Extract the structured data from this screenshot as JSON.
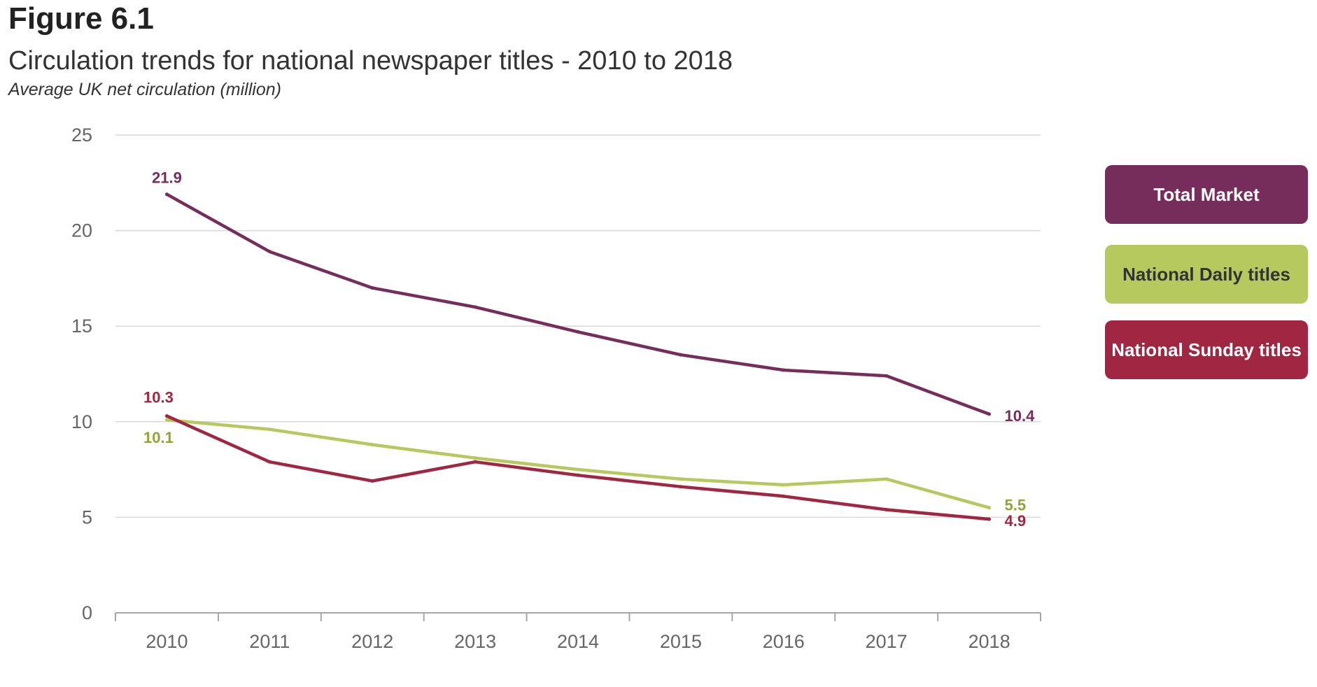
{
  "header": {
    "figure_label": "Figure 6.1",
    "title": "Circulation trends for national newspaper titles - 2010 to 2018",
    "subtitle": "Average UK net circulation (million)"
  },
  "chart_data": {
    "type": "line",
    "title": "Circulation trends for national newspaper titles - 2010 to 2018",
    "subtitle": "Average UK net circulation (million)",
    "xlabel": "",
    "ylabel": "",
    "x": [
      "2010",
      "2011",
      "2012",
      "2013",
      "2014",
      "2015",
      "2016",
      "2017",
      "2018"
    ],
    "ylim": [
      0,
      25
    ],
    "yticks": [
      0,
      5,
      10,
      15,
      20,
      25
    ],
    "grid": "horizontal",
    "legend_position": "right",
    "series": [
      {
        "name": "Total Market",
        "color": "#772d5c",
        "values": [
          21.9,
          18.9,
          17.0,
          16.0,
          14.7,
          13.5,
          12.7,
          12.4,
          10.4
        ],
        "labels": {
          "0": "21.9",
          "8": "10.4"
        }
      },
      {
        "name": "National Daily titles",
        "color": "#b5c95e",
        "label_color": "#8fa632",
        "text_color": "#333333",
        "values": [
          10.1,
          9.6,
          8.8,
          8.1,
          7.5,
          7.0,
          6.7,
          7.0,
          5.5
        ],
        "labels": {
          "0": "10.1",
          "8": "5.5"
        }
      },
      {
        "name": "National Sunday titles",
        "color": "#a12641",
        "values": [
          10.3,
          7.9,
          6.9,
          7.9,
          7.2,
          6.6,
          6.1,
          5.4,
          4.9
        ],
        "labels": {
          "0": "10.3",
          "8": "4.9"
        }
      }
    ]
  }
}
